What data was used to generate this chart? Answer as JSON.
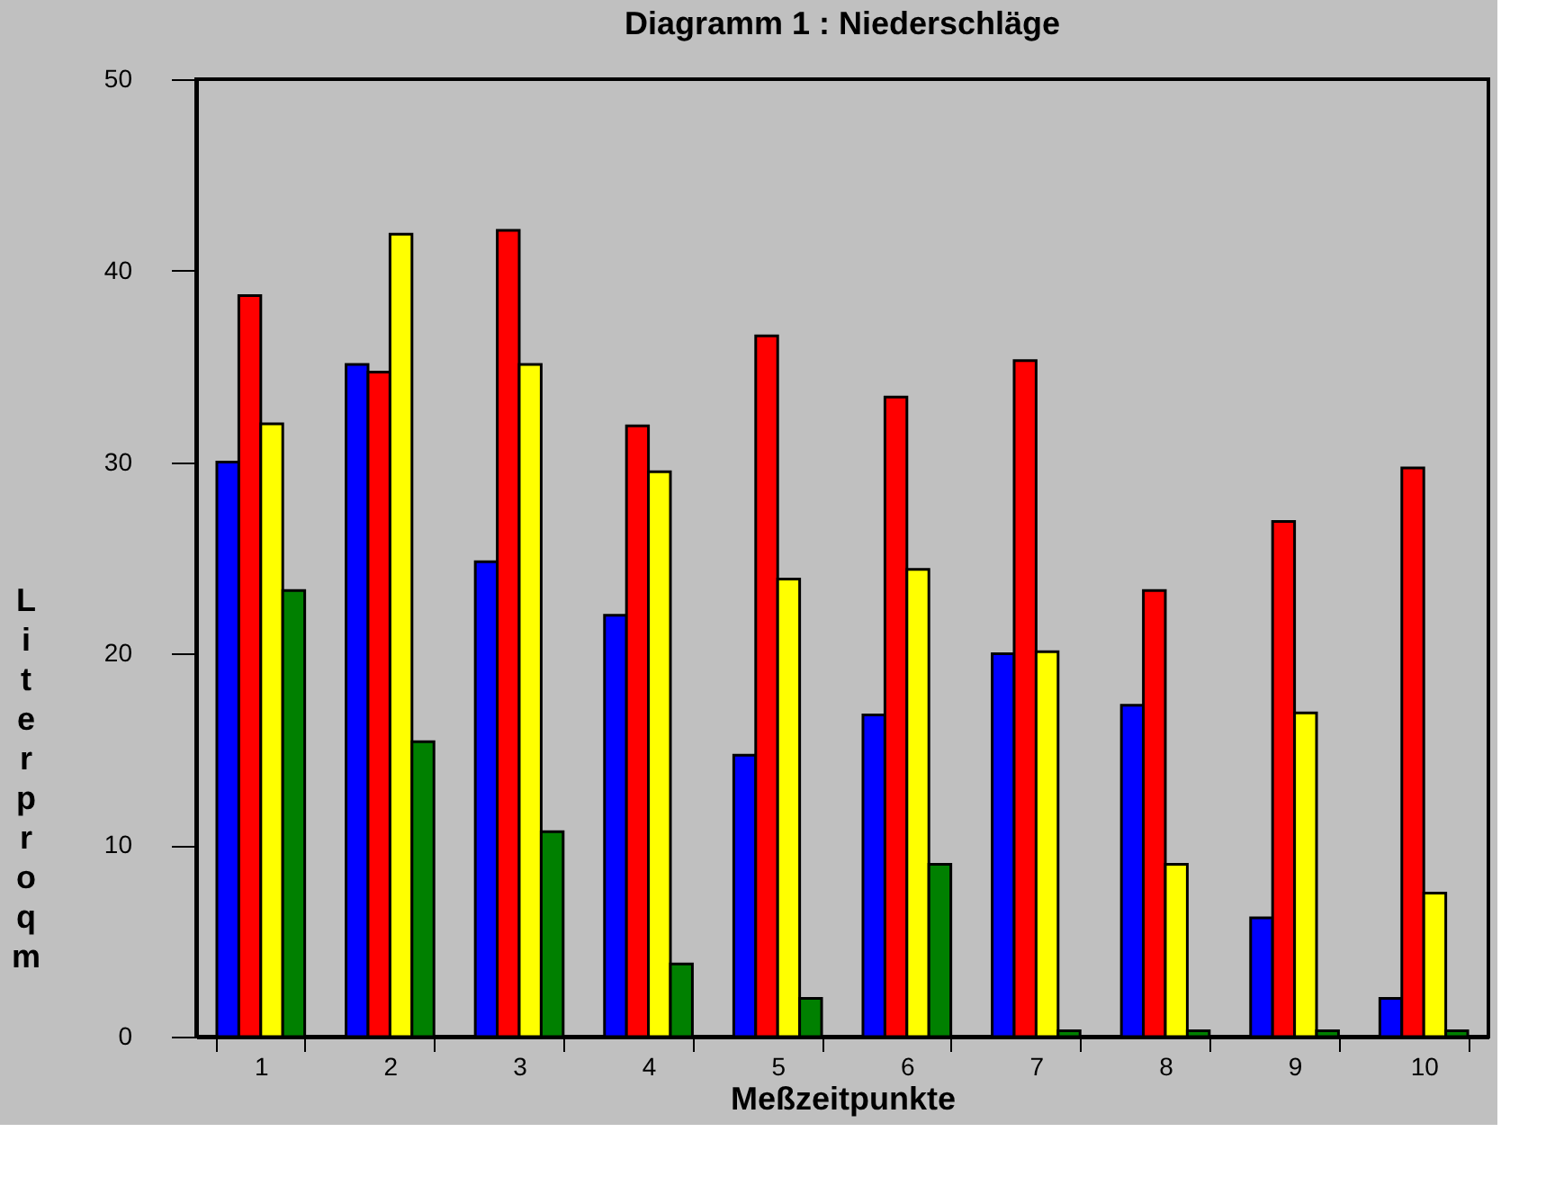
{
  "chart_data": {
    "type": "bar",
    "title": "Diagramm 1 : Niederschläge",
    "xlabel": "Meßzeitpunkte",
    "ylabel": "Liter pro qm",
    "categories": [
      "1",
      "2",
      "3",
      "4",
      "5",
      "6",
      "7",
      "8",
      "9",
      "10"
    ],
    "series": [
      {
        "color": "#0000ff",
        "values": [
          30,
          35.1,
          24.8,
          22,
          14.7,
          16.8,
          20,
          17.3,
          6.2,
          2
        ]
      },
      {
        "color": "#ff0000",
        "values": [
          38.7,
          34.7,
          42.1,
          31.9,
          36.6,
          33.4,
          35.3,
          23.3,
          26.9,
          29.7
        ]
      },
      {
        "color": "#ffff00",
        "values": [
          32,
          41.9,
          35.1,
          29.5,
          23.9,
          24.4,
          20.1,
          9,
          16.9,
          7.5
        ]
      },
      {
        "color": "#008000",
        "values": [
          23.3,
          15.4,
          10.7,
          3.8,
          2,
          9,
          0.3,
          0.3,
          0.3,
          0.3
        ]
      }
    ],
    "ylim": [
      0,
      50
    ],
    "yticks": [
      0,
      10,
      20,
      30,
      40,
      50
    ],
    "grid": false,
    "legend": false
  }
}
